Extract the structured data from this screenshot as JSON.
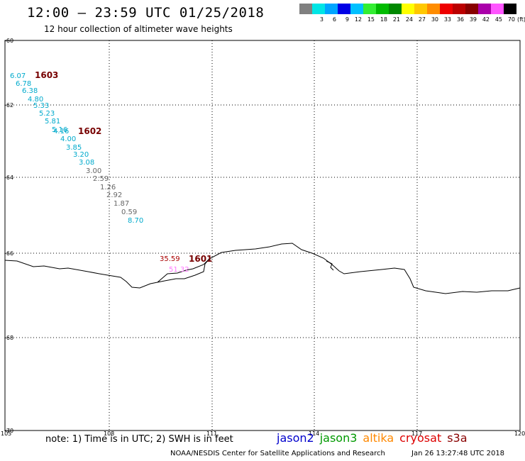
{
  "header": {
    "title": "12:00 – 23:59 UTC 01/25/2018",
    "subtitle": "12 hour collection of altimeter wave heights"
  },
  "color_scale": {
    "unit": "(ft)",
    "swatches": [
      {
        "label": "",
        "color": "#808080"
      },
      {
        "label": "3",
        "color": "#00e5e5"
      },
      {
        "label": "6",
        "color": "#00a5ff"
      },
      {
        "label": "9",
        "color": "#0000e6"
      },
      {
        "label": "12",
        "color": "#00c0ff"
      },
      {
        "label": "15",
        "color": "#33ee33"
      },
      {
        "label": "18",
        "color": "#00bb00"
      },
      {
        "label": "21",
        "color": "#008800"
      },
      {
        "label": "24",
        "color": "#ffff00"
      },
      {
        "label": "27",
        "color": "#ffc800"
      },
      {
        "label": "30",
        "color": "#ff8c00"
      },
      {
        "label": "33",
        "color": "#ee0000"
      },
      {
        "label": "36",
        "color": "#bb0000"
      },
      {
        "label": "39",
        "color": "#880000"
      },
      {
        "label": "42",
        "color": "#aa00aa"
      },
      {
        "label": "45",
        "color": "#ff55ff"
      },
      {
        "label": "70",
        "color": "#000000"
      }
    ]
  },
  "map": {
    "x_ticks": [
      "105",
      "108",
      "111",
      "114",
      "117",
      "120"
    ],
    "y_ticks": [
      "-60",
      "-62",
      "-64",
      "-66",
      "-68",
      "-70"
    ],
    "track_labels": [
      "1603",
      "1602",
      "1601"
    ],
    "track_label_color": "#770000",
    "points": [
      {
        "value": "6.07",
        "color": "#00aacc"
      },
      {
        "value": "6.78",
        "color": "#00aacc"
      },
      {
        "value": "6.38",
        "color": "#00aacc"
      },
      {
        "value": "4.80",
        "color": "#00aacc"
      },
      {
        "value": "5.33",
        "color": "#00aacc"
      },
      {
        "value": "5.23",
        "color": "#00aacc"
      },
      {
        "value": "5.81",
        "color": "#00aacc"
      },
      {
        "value": "5.16",
        "color": "#00aacc"
      },
      {
        "value": "4.16",
        "color": "#00aacc"
      },
      {
        "value": "4.00",
        "color": "#00aacc"
      },
      {
        "value": "3.85",
        "color": "#00aacc"
      },
      {
        "value": "3.20",
        "color": "#00aacc"
      },
      {
        "value": "3.08",
        "color": "#00aacc"
      },
      {
        "value": "3.00",
        "color": "#666666"
      },
      {
        "value": "2.59",
        "color": "#666666"
      },
      {
        "value": "1.26",
        "color": "#666666"
      },
      {
        "value": "2.92",
        "color": "#666666"
      },
      {
        "value": "1.87",
        "color": "#666666"
      },
      {
        "value": "0.59",
        "color": "#666666"
      },
      {
        "value": "8.70",
        "color": "#00aacc"
      },
      {
        "value": "35.59",
        "color": "#aa0000"
      },
      {
        "value": "51.32",
        "color": "#ff77ff"
      }
    ]
  },
  "footer": {
    "note": "note: 1) Time is in UTC; 2) SWH is in feet",
    "satellites": [
      {
        "name": "jason2",
        "color": "#0000cc"
      },
      {
        "name": "jason3",
        "color": "#009900"
      },
      {
        "name": "altika",
        "color": "#ff8800"
      },
      {
        "name": "cryosat",
        "color": "#dd0000"
      },
      {
        "name": "s3a",
        "color": "#880000"
      }
    ],
    "credit": "NOAA/NESDIS Center for Satellite Applications and Research",
    "timestamp": "Jan 26 13:27:48 UTC 2018"
  }
}
